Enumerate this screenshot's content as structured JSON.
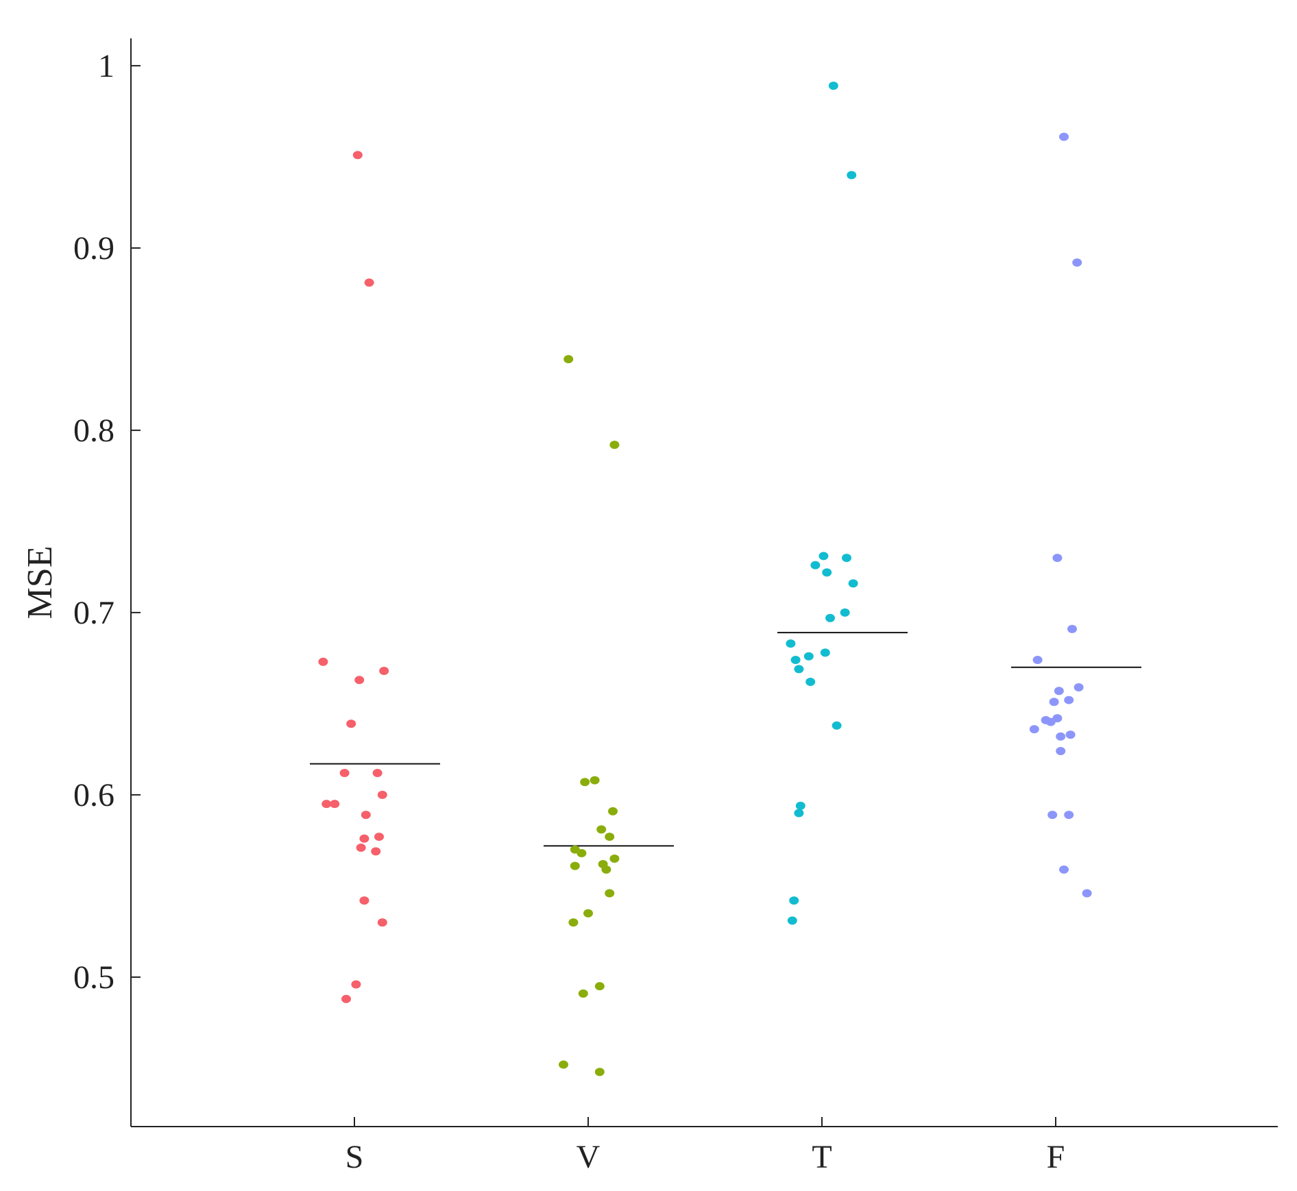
{
  "chart_data": {
    "type": "scatter",
    "title": "",
    "xlabel": "",
    "ylabel": "MSE",
    "ylim": [
      0.418,
      1.015
    ],
    "yticks": [
      0.5,
      0.6,
      0.7,
      0.8,
      0.9,
      1
    ],
    "ytick_labels": [
      "0.5",
      "0.6",
      "0.7",
      "0.8",
      "0.9",
      "1"
    ],
    "grid": false,
    "categories": [
      "S",
      "V",
      "T",
      "F"
    ],
    "series": [
      {
        "category": "S",
        "color": "#f5606a",
        "mean": 0.617,
        "points": [
          {
            "x": -0.19,
            "y": 0.673
          },
          {
            "x": 0.02,
            "y": 0.951
          },
          {
            "x": 0.09,
            "y": 0.881
          },
          {
            "x": 0.03,
            "y": 0.663
          },
          {
            "x": 0.18,
            "y": 0.668
          },
          {
            "x": -0.02,
            "y": 0.639
          },
          {
            "x": -0.06,
            "y": 0.612
          },
          {
            "x": 0.14,
            "y": 0.612
          },
          {
            "x": 0.17,
            "y": 0.6
          },
          {
            "x": -0.17,
            "y": 0.595
          },
          {
            "x": -0.12,
            "y": 0.595
          },
          {
            "x": 0.07,
            "y": 0.589
          },
          {
            "x": 0.06,
            "y": 0.576
          },
          {
            "x": 0.15,
            "y": 0.577
          },
          {
            "x": 0.04,
            "y": 0.571
          },
          {
            "x": 0.13,
            "y": 0.569
          },
          {
            "x": 0.06,
            "y": 0.542
          },
          {
            "x": 0.17,
            "y": 0.53
          },
          {
            "x": 0.01,
            "y": 0.496
          },
          {
            "x": -0.05,
            "y": 0.488
          }
        ]
      },
      {
        "category": "V",
        "color": "#8aad0c",
        "mean": 0.572,
        "points": [
          {
            "x": -0.12,
            "y": 0.839
          },
          {
            "x": 0.16,
            "y": 0.792
          },
          {
            "x": 0.04,
            "y": 0.608
          },
          {
            "x": -0.02,
            "y": 0.607
          },
          {
            "x": 0.15,
            "y": 0.591
          },
          {
            "x": 0.08,
            "y": 0.581
          },
          {
            "x": 0.13,
            "y": 0.577
          },
          {
            "x": -0.08,
            "y": 0.57
          },
          {
            "x": -0.04,
            "y": 0.568
          },
          {
            "x": 0.16,
            "y": 0.565
          },
          {
            "x": 0.09,
            "y": 0.562
          },
          {
            "x": -0.08,
            "y": 0.561
          },
          {
            "x": 0.11,
            "y": 0.559
          },
          {
            "x": 0.13,
            "y": 0.546
          },
          {
            "x": 0.0,
            "y": 0.535
          },
          {
            "x": -0.09,
            "y": 0.53
          },
          {
            "x": 0.07,
            "y": 0.495
          },
          {
            "x": -0.03,
            "y": 0.491
          },
          {
            "x": -0.15,
            "y": 0.452
          },
          {
            "x": 0.07,
            "y": 0.448
          }
        ]
      },
      {
        "category": "T",
        "color": "#12bcd0",
        "mean": 0.689,
        "points": [
          {
            "x": 0.07,
            "y": 0.989
          },
          {
            "x": 0.18,
            "y": 0.94
          },
          {
            "x": 0.01,
            "y": 0.731
          },
          {
            "x": 0.15,
            "y": 0.73
          },
          {
            "x": -0.04,
            "y": 0.726
          },
          {
            "x": 0.03,
            "y": 0.722
          },
          {
            "x": 0.19,
            "y": 0.716
          },
          {
            "x": 0.14,
            "y": 0.7
          },
          {
            "x": 0.05,
            "y": 0.697
          },
          {
            "x": -0.19,
            "y": 0.683
          },
          {
            "x": 0.02,
            "y": 0.678
          },
          {
            "x": -0.08,
            "y": 0.676
          },
          {
            "x": -0.16,
            "y": 0.674
          },
          {
            "x": -0.14,
            "y": 0.669
          },
          {
            "x": -0.07,
            "y": 0.662
          },
          {
            "x": 0.09,
            "y": 0.638
          },
          {
            "x": -0.13,
            "y": 0.594
          },
          {
            "x": -0.14,
            "y": 0.59
          },
          {
            "x": -0.17,
            "y": 0.542
          },
          {
            "x": -0.18,
            "y": 0.531
          }
        ]
      },
      {
        "category": "F",
        "color": "#8c96fa",
        "mean": 0.67,
        "points": [
          {
            "x": 0.05,
            "y": 0.961
          },
          {
            "x": 0.13,
            "y": 0.892
          },
          {
            "x": 0.01,
            "y": 0.73
          },
          {
            "x": 0.1,
            "y": 0.691
          },
          {
            "x": -0.11,
            "y": 0.674
          },
          {
            "x": 0.14,
            "y": 0.659
          },
          {
            "x": 0.02,
            "y": 0.657
          },
          {
            "x": -0.01,
            "y": 0.651
          },
          {
            "x": 0.08,
            "y": 0.652
          },
          {
            "x": -0.06,
            "y": 0.641
          },
          {
            "x": -0.03,
            "y": 0.64
          },
          {
            "x": 0.01,
            "y": 0.642
          },
          {
            "x": -0.13,
            "y": 0.636
          },
          {
            "x": 0.03,
            "y": 0.632
          },
          {
            "x": 0.09,
            "y": 0.633
          },
          {
            "x": 0.03,
            "y": 0.624
          },
          {
            "x": -0.02,
            "y": 0.589
          },
          {
            "x": 0.08,
            "y": 0.589
          },
          {
            "x": 0.05,
            "y": 0.559
          },
          {
            "x": 0.19,
            "y": 0.546
          }
        ]
      }
    ]
  }
}
